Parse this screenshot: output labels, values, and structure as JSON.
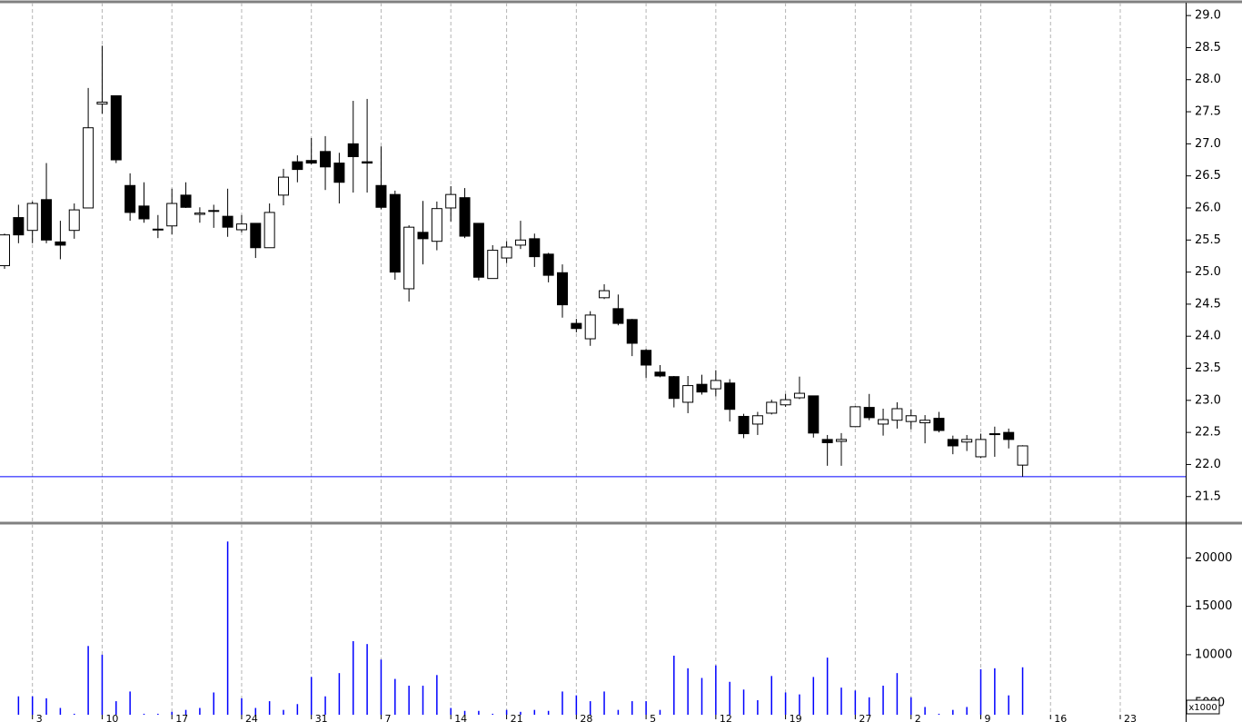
{
  "chart_data": [
    {
      "type": "candlestick",
      "open": [
        25.1,
        25.85,
        25.65,
        26.13,
        25.47,
        25.65,
        26.0,
        27.62,
        27.75,
        26.35,
        26.03,
        25.67,
        25.72,
        26.2,
        25.9,
        25.95,
        25.87,
        25.66,
        25.76,
        25.38,
        26.2,
        26.72,
        26.74,
        26.88,
        26.7,
        27.0,
        26.72,
        26.35,
        26.21,
        24.74,
        25.62,
        25.48,
        26.0,
        26.16,
        25.76,
        24.9,
        25.22,
        25.42,
        25.52,
        25.28,
        24.99,
        24.2,
        23.96,
        24.6,
        24.43,
        24.26,
        23.78,
        23.44,
        23.37,
        22.97,
        23.25,
        23.18,
        23.27,
        22.75,
        22.63,
        22.8,
        22.93,
        23.04,
        23.07,
        22.39,
        22.36,
        22.59,
        22.89,
        22.63,
        22.69,
        22.67,
        22.65,
        22.72,
        22.39,
        22.35,
        22.12,
        22.47,
        22.5,
        21.99
      ],
      "high": [
        25.6,
        26.05,
        26.1,
        26.7,
        25.8,
        26.07,
        27.87,
        28.53,
        27.75,
        26.54,
        26.4,
        25.89,
        26.3,
        26.4,
        26.01,
        26.05,
        26.3,
        25.89,
        25.76,
        26.07,
        26.61,
        26.82,
        27.09,
        27.12,
        26.86,
        27.67,
        27.7,
        26.96,
        26.27,
        25.73,
        26.11,
        26.1,
        26.34,
        26.31,
        25.76,
        25.42,
        25.48,
        25.8,
        25.6,
        25.3,
        25.12,
        24.27,
        24.39,
        24.81,
        24.65,
        24.27,
        23.8,
        23.55,
        23.38,
        23.38,
        23.4,
        23.47,
        23.33,
        22.79,
        22.82,
        23.01,
        23.1,
        23.37,
        23.07,
        22.46,
        22.49,
        22.91,
        23.1,
        22.87,
        22.97,
        22.86,
        22.77,
        22.82,
        22.45,
        22.46,
        22.48,
        22.59,
        22.56,
        22.3
      ],
      "low": [
        25.05,
        25.45,
        25.45,
        25.45,
        25.2,
        25.52,
        26.0,
        27.47,
        26.7,
        25.8,
        25.77,
        25.53,
        25.59,
        26.0,
        25.77,
        25.69,
        25.55,
        25.62,
        25.22,
        25.38,
        26.04,
        26.4,
        26.68,
        26.28,
        26.07,
        26.24,
        26.24,
        25.98,
        24.88,
        24.54,
        25.12,
        25.34,
        25.79,
        25.53,
        24.87,
        24.9,
        25.14,
        25.36,
        25.08,
        24.84,
        24.29,
        24.06,
        23.85,
        24.58,
        24.17,
        23.69,
        23.35,
        23.36,
        22.89,
        22.8,
        23.09,
        23.06,
        22.67,
        22.41,
        22.46,
        22.78,
        22.9,
        23.02,
        22.42,
        21.98,
        21.98,
        22.58,
        22.69,
        22.45,
        22.56,
        22.55,
        22.33,
        22.5,
        22.16,
        22.21,
        22.1,
        22.12,
        22.25,
        21.81
      ],
      "close": [
        25.58,
        25.58,
        26.07,
        25.5,
        25.42,
        25.97,
        27.25,
        27.65,
        26.75,
        25.93,
        25.83,
        25.66,
        26.07,
        26.01,
        25.92,
        25.96,
        25.7,
        25.75,
        25.38,
        25.93,
        26.48,
        26.6,
        26.7,
        26.64,
        26.4,
        26.8,
        26.7,
        26.01,
        25.0,
        25.7,
        25.52,
        25.99,
        26.21,
        25.56,
        24.92,
        25.34,
        25.39,
        25.5,
        25.24,
        24.95,
        24.49,
        24.12,
        24.33,
        24.71,
        24.2,
        23.89,
        23.55,
        23.38,
        23.03,
        23.23,
        23.13,
        23.31,
        22.86,
        22.48,
        22.76,
        22.97,
        23.01,
        23.11,
        22.49,
        22.34,
        22.39,
        22.9,
        22.73,
        22.7,
        22.87,
        22.76,
        22.69,
        22.53,
        22.29,
        22.39,
        22.39,
        22.48,
        22.39,
        22.29
      ],
      "up_color": "#ffffff",
      "down_color": "#000000",
      "hline": 21.81,
      "hline_color": "#0000ff",
      "ylim": [
        21.1,
        29.2
      ],
      "yticks": [
        21.5,
        {
          "value": 22,
          "label": "22.0"
        },
        22.5,
        {
          "value": 23,
          "label": "23.0"
        },
        23.5,
        {
          "value": 24,
          "label": "24.0"
        },
        24.5,
        {
          "value": 25,
          "label": "25.0"
        },
        25.5,
        {
          "value": 26,
          "label": "26.0"
        },
        26.5,
        {
          "value": 27,
          "label": "27.0"
        },
        27.5,
        {
          "value": 28,
          "label": "28.0"
        },
        28.5,
        {
          "value": 29,
          "label": "29.0"
        }
      ],
      "grid": true
    },
    {
      "type": "bar",
      "categories": [
        null,
        null,
        "3",
        null,
        null,
        null,
        null,
        "10",
        null,
        null,
        null,
        null,
        "17",
        null,
        null,
        null,
        null,
        "24",
        null,
        null,
        null,
        null,
        "31",
        null,
        null,
        null,
        null,
        "7",
        null,
        null,
        null,
        null,
        "14",
        null,
        null,
        null,
        "21",
        null,
        null,
        null,
        null,
        "28",
        null,
        null,
        null,
        null,
        "5",
        null,
        null,
        null,
        null,
        "12",
        null,
        null,
        null,
        null,
        "19",
        null,
        null,
        null,
        null,
        "27",
        null,
        null,
        null,
        "2",
        null,
        null,
        null,
        null,
        "9",
        null,
        null,
        null,
        null,
        "16",
        null,
        null,
        null,
        null,
        "23",
        null,
        null,
        null,
        null
      ],
      "values": [
        null,
        5700,
        5700,
        5500,
        4500,
        3900,
        10900,
        10000,
        5200,
        6200,
        3900,
        3900,
        4100,
        4300,
        4500,
        6100,
        21700,
        5500,
        4500,
        5200,
        4300,
        4900,
        7700,
        5700,
        8100,
        11400,
        11100,
        9500,
        7500,
        6800,
        6800,
        7900,
        4500,
        4200,
        4200,
        3900,
        4300,
        4100,
        4300,
        4200,
        6200,
        5800,
        5200,
        6200,
        4300,
        5200,
        5200,
        4300,
        9900,
        8600,
        7600,
        8900,
        7200,
        6400,
        5300,
        7800,
        6100,
        5900,
        7700,
        9700,
        6600,
        6300,
        5600,
        6800,
        8100,
        5600,
        4600,
        3900,
        4300,
        4600,
        8500,
        8600,
        5800,
        8700,
        null,
        null,
        null,
        null,
        null,
        null,
        null,
        null,
        null,
        null,
        null
      ],
      "color": "#0000ff",
      "multiplier_label": "x1000",
      "ylim": [
        3800,
        23500
      ],
      "yticks": [
        5000,
        10000,
        15000,
        20000
      ],
      "grid": true
    }
  ]
}
